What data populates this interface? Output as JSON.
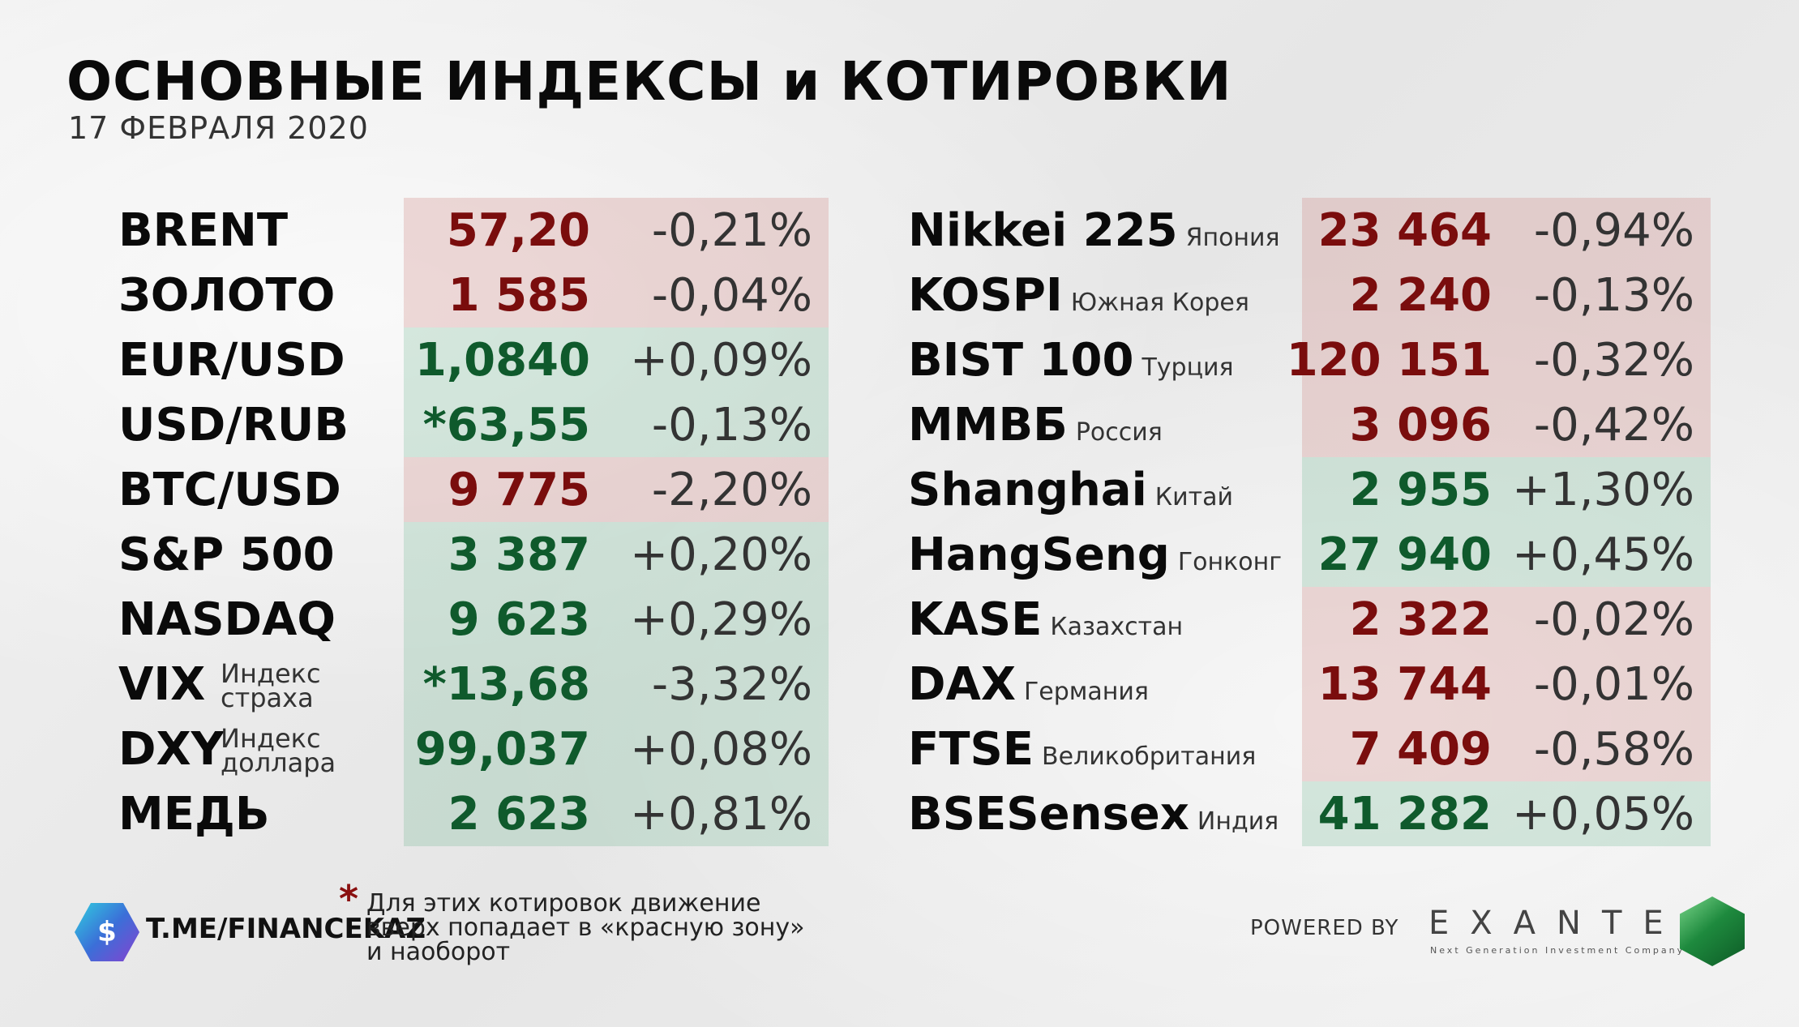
{
  "header": {
    "title": "ОСНОВНЫЕ ИНДЕКСЫ и КОТИРОВКИ",
    "date": "17 ФЕВРАЛЯ 2020"
  },
  "colors": {
    "up": "#0f5a2c",
    "down": "#7a0d0d"
  },
  "left": [
    {
      "name": "BRENT",
      "value": "57,20",
      "change": "-0,21%",
      "zone": "red"
    },
    {
      "name": "ЗОЛОТО",
      "value": "1 585",
      "change": "-0,04%",
      "zone": "red"
    },
    {
      "name": "EUR/USD",
      "value": "1,0840",
      "change": "+0,09%",
      "zone": "green"
    },
    {
      "name": "USD/RUB",
      "value": "*63,55",
      "change": "-0,13%",
      "zone": "green"
    },
    {
      "name": "BTC/USD",
      "value": "9 775",
      "change": "-2,20%",
      "zone": "red"
    },
    {
      "name": "S&P 500",
      "value": "3 387",
      "change": "+0,20%",
      "zone": "green"
    },
    {
      "name": "NASDAQ",
      "value": "9 623",
      "change": "+0,29%",
      "zone": "green"
    },
    {
      "name": "VIX",
      "sub1": "Индекс",
      "sub2": "страха",
      "value": "*13,68",
      "change": "-3,32%",
      "zone": "green"
    },
    {
      "name": "DXY",
      "sub1": "Индекс",
      "sub2": "доллара",
      "value": "99,037",
      "change": "+0,08%",
      "zone": "green"
    },
    {
      "name": "МЕДЬ",
      "value": "2 623",
      "change": "+0,81%",
      "zone": "green"
    }
  ],
  "right": [
    {
      "name": "Nikkei 225",
      "country": "Япония",
      "value": "23 464",
      "change": "-0,94%",
      "zone": "red"
    },
    {
      "name": "KOSPI",
      "country": "Южная Корея",
      "value": "2 240",
      "change": "-0,13%",
      "zone": "red"
    },
    {
      "name": "BIST 100",
      "country": "Турция",
      "value": "120 151",
      "change": "-0,32%",
      "zone": "red"
    },
    {
      "name": "ММВБ",
      "country": "Россия",
      "value": "3 096",
      "change": "-0,42%",
      "zone": "red"
    },
    {
      "name": "Shanghai",
      "country": "Китай",
      "value": "2 955",
      "change": "+1,30%",
      "zone": "green"
    },
    {
      "name": "HangSeng",
      "country": "Гонконг",
      "value": "27 940",
      "change": "+0,45%",
      "zone": "green"
    },
    {
      "name": "KASE",
      "country": "Казахстан",
      "value": "2 322",
      "change": "-0,02%",
      "zone": "red"
    },
    {
      "name": "DAX",
      "country": "Германия",
      "value": "13 744",
      "change": "-0,01%",
      "zone": "red"
    },
    {
      "name": "FTSE",
      "country": "Великобритания",
      "value": "7 409",
      "change": "-0,58%",
      "zone": "red"
    },
    {
      "name": "BSESensex",
      "country": "Индия",
      "value": "41 282",
      "change": "+0,05%",
      "zone": "green"
    }
  ],
  "footer": {
    "channel": "T.ME/FINANCEKAZ",
    "note_star": "*",
    "note_lines": [
      "Для этих котировок движение",
      "вверх попадает в «красную зону»",
      "и наоборот"
    ],
    "powered_by": "POWERED BY",
    "brand": "EXANTE",
    "brand_tagline": "Next Generation Investment Company"
  }
}
